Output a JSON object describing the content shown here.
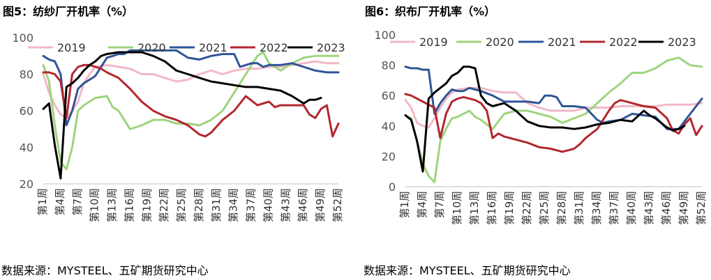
{
  "figures": [
    {
      "title": "图5：纺纱厂开机率（%）",
      "source": "数据来源：MYSTEEL、五矿期货研究中心"
    },
    {
      "title": "图6：织布厂开机率（%）",
      "source": "数据来源：MYSTEEL、五矿期货研究中心"
    }
  ],
  "colors": {
    "2019": "#f2b8c6",
    "2020": "#9ed47e",
    "2021": "#2f5597",
    "2022": "#b3272d",
    "2023": "#000000"
  },
  "chart_data": [
    {
      "type": "line",
      "title": "图5：纺纱厂开机率（%）",
      "ylim": [
        20,
        100
      ],
      "yticks": [
        20,
        40,
        60,
        80,
        100
      ],
      "xlim": [
        1,
        52
      ],
      "xtick_labels": [
        "第1周",
        "第4周",
        "第7周",
        "第10周",
        "第13周",
        "第16周",
        "第19周",
        "第22周",
        "第25周",
        "第28周",
        "第31周",
        "第34周",
        "第37周",
        "第40周",
        "第43周",
        "第46周",
        "第49周",
        "第52周"
      ],
      "legend_position": "top",
      "series": [
        {
          "name": "2019",
          "x": [
            1,
            2,
            3,
            4,
            5,
            6,
            7,
            8,
            9,
            10,
            12,
            14,
            16,
            18,
            20,
            22,
            24,
            26,
            28,
            30,
            32,
            34,
            36,
            38,
            40,
            42,
            44,
            46,
            48,
            50,
            52
          ],
          "values": [
            80,
            70,
            63,
            58,
            56,
            60,
            65,
            75,
            80,
            84,
            85,
            84,
            83,
            80,
            80,
            78,
            76,
            77,
            80,
            82,
            80,
            82,
            83,
            83,
            84,
            84,
            85,
            86,
            87,
            86,
            86
          ]
        },
        {
          "name": "2020",
          "x": [
            1,
            2,
            3,
            4,
            5,
            6,
            7,
            8,
            9,
            10,
            12,
            13,
            14,
            16,
            18,
            20,
            22,
            24,
            26,
            28,
            30,
            32,
            34,
            36,
            37,
            38,
            39,
            40,
            42,
            44,
            46,
            48,
            50,
            52
          ],
          "values": [
            85,
            76,
            52,
            32,
            28,
            40,
            60,
            63,
            65,
            67,
            68,
            62,
            60,
            50,
            52,
            55,
            55,
            53,
            53,
            52,
            55,
            60,
            70,
            80,
            85,
            90,
            92,
            86,
            82,
            86,
            89,
            90,
            90,
            90
          ]
        },
        {
          "name": "2021",
          "x": [
            1,
            2,
            3,
            4,
            5,
            6,
            7,
            8,
            9,
            10,
            11,
            12,
            13,
            14,
            15,
            16,
            18,
            20,
            22,
            24,
            26,
            28,
            29,
            30,
            32,
            34,
            35,
            36,
            37,
            38,
            39,
            40,
            42,
            44,
            46,
            48,
            50,
            52
          ],
          "values": [
            90,
            88,
            87,
            80,
            52,
            60,
            72,
            75,
            77,
            79,
            84,
            89,
            90,
            91,
            91,
            93,
            93,
            93,
            93,
            93,
            89,
            88,
            89,
            90,
            91,
            91,
            84,
            85,
            86,
            86,
            84,
            85,
            85,
            86,
            84,
            82,
            81,
            81
          ]
        },
        {
          "name": "2022",
          "x": [
            1,
            2,
            3,
            4,
            5,
            6,
            7,
            8,
            9,
            10,
            11,
            12,
            14,
            16,
            18,
            20,
            22,
            24,
            26,
            28,
            29,
            30,
            32,
            34,
            36,
            38,
            40,
            41,
            42,
            44,
            46,
            47,
            48,
            49,
            50,
            51,
            52
          ],
          "values": [
            81,
            81,
            80,
            76,
            56,
            80,
            84,
            85,
            85,
            84,
            83,
            81,
            78,
            72,
            65,
            60,
            57,
            55,
            52,
            47,
            46,
            48,
            55,
            60,
            68,
            63,
            65,
            62,
            63,
            63,
            63,
            58,
            56,
            61,
            63,
            46,
            53
          ]
        },
        {
          "name": "2023",
          "x": [
            1,
            2,
            3,
            4,
            5,
            6,
            7,
            8,
            9,
            10,
            11,
            12,
            14,
            16,
            18,
            20,
            22,
            24,
            26,
            28,
            30,
            32,
            34,
            36,
            38,
            40,
            42,
            44,
            46,
            47,
            48,
            49
          ],
          "values": [
            61,
            64,
            41,
            23,
            73,
            75,
            78,
            82,
            85,
            87,
            90,
            91,
            92,
            92,
            92,
            90,
            87,
            82,
            80,
            78,
            76,
            75,
            74,
            73,
            73,
            72,
            71,
            68,
            64,
            66,
            66,
            67
          ]
        }
      ]
    },
    {
      "type": "line",
      "title": "图6：织布厂开机率（%）",
      "ylim": [
        0,
        100
      ],
      "yticks": [
        0,
        20,
        40,
        60,
        80,
        100
      ],
      "xlim": [
        1,
        52
      ],
      "xtick_labels": [
        "第1周",
        "第4周",
        "第7周",
        "第10周",
        "第13周",
        "第16周",
        "第19周",
        "第22周",
        "第25周",
        "第28周",
        "第31周",
        "第34周",
        "第37周",
        "第40周",
        "第43周",
        "第46周",
        "第49周",
        "第52周"
      ],
      "legend_position": "top",
      "series": [
        {
          "name": "2019",
          "x": [
            1,
            2,
            3,
            4,
            5,
            6,
            7,
            8,
            9,
            10,
            12,
            14,
            16,
            18,
            20,
            22,
            24,
            26,
            28,
            30,
            32,
            34,
            36,
            38,
            40,
            42,
            44,
            46,
            48,
            50,
            52
          ],
          "values": [
            57,
            52,
            42,
            40,
            39,
            45,
            52,
            58,
            62,
            64,
            65,
            65,
            63,
            62,
            62,
            55,
            52,
            50,
            50,
            50,
            52,
            52,
            52,
            53,
            53,
            53,
            53,
            54,
            54,
            54,
            55
          ]
        },
        {
          "name": "2020",
          "x": [
            1,
            2,
            3,
            4,
            5,
            6,
            7,
            8,
            9,
            10,
            12,
            13,
            14,
            16,
            18,
            20,
            22,
            24,
            26,
            28,
            30,
            32,
            34,
            36,
            38,
            40,
            42,
            44,
            46,
            48,
            50,
            52
          ],
          "values": [
            47,
            45,
            30,
            15,
            7,
            3,
            30,
            38,
            45,
            46,
            50,
            46,
            44,
            38,
            48,
            50,
            50,
            48,
            46,
            42,
            45,
            48,
            55,
            62,
            68,
            75,
            75,
            78,
            83,
            85,
            80,
            79
          ]
        },
        {
          "name": "2021",
          "x": [
            1,
            2,
            3,
            4,
            5,
            6,
            7,
            8,
            9,
            10,
            11,
            12,
            13,
            14,
            16,
            18,
            20,
            22,
            24,
            25,
            26,
            27,
            28,
            30,
            32,
            34,
            35,
            36,
            38,
            40,
            42,
            44,
            46,
            48,
            50,
            52
          ],
          "values": [
            79,
            78,
            78,
            77,
            77,
            48,
            55,
            60,
            64,
            63,
            63,
            65,
            64,
            63,
            60,
            56,
            56,
            56,
            55,
            60,
            60,
            59,
            53,
            53,
            52,
            44,
            42,
            43,
            44,
            48,
            47,
            46,
            38,
            38,
            48,
            58
          ]
        },
        {
          "name": "2022",
          "x": [
            1,
            2,
            3,
            4,
            5,
            6,
            7,
            8,
            9,
            10,
            11,
            12,
            13,
            14,
            15,
            16,
            17,
            18,
            20,
            22,
            24,
            26,
            28,
            30,
            31,
            32,
            34,
            36,
            37,
            38,
            40,
            42,
            44,
            46,
            47,
            48,
            49,
            50,
            51,
            52
          ],
          "values": [
            61,
            60,
            58,
            56,
            54,
            52,
            32,
            48,
            56,
            58,
            59,
            58,
            57,
            55,
            50,
            32,
            35,
            33,
            31,
            29,
            26,
            25,
            23,
            25,
            28,
            32,
            38,
            50,
            55,
            57,
            55,
            53,
            52,
            45,
            37,
            35,
            41,
            45,
            34,
            40
          ]
        },
        {
          "name": "2023",
          "x": [
            1,
            2,
            3,
            4,
            5,
            6,
            7,
            8,
            9,
            10,
            11,
            12,
            13,
            14,
            15,
            16,
            18,
            20,
            22,
            24,
            26,
            28,
            30,
            32,
            34,
            36,
            38,
            40,
            42,
            43,
            44,
            46,
            47,
            48,
            49
          ],
          "values": [
            47,
            44,
            30,
            10,
            58,
            62,
            65,
            68,
            73,
            75,
            79,
            79,
            78,
            60,
            55,
            53,
            55,
            50,
            43,
            40,
            39,
            39,
            38,
            39,
            41,
            42,
            44,
            43,
            50,
            47,
            45,
            39,
            37,
            38,
            40
          ]
        }
      ]
    }
  ]
}
